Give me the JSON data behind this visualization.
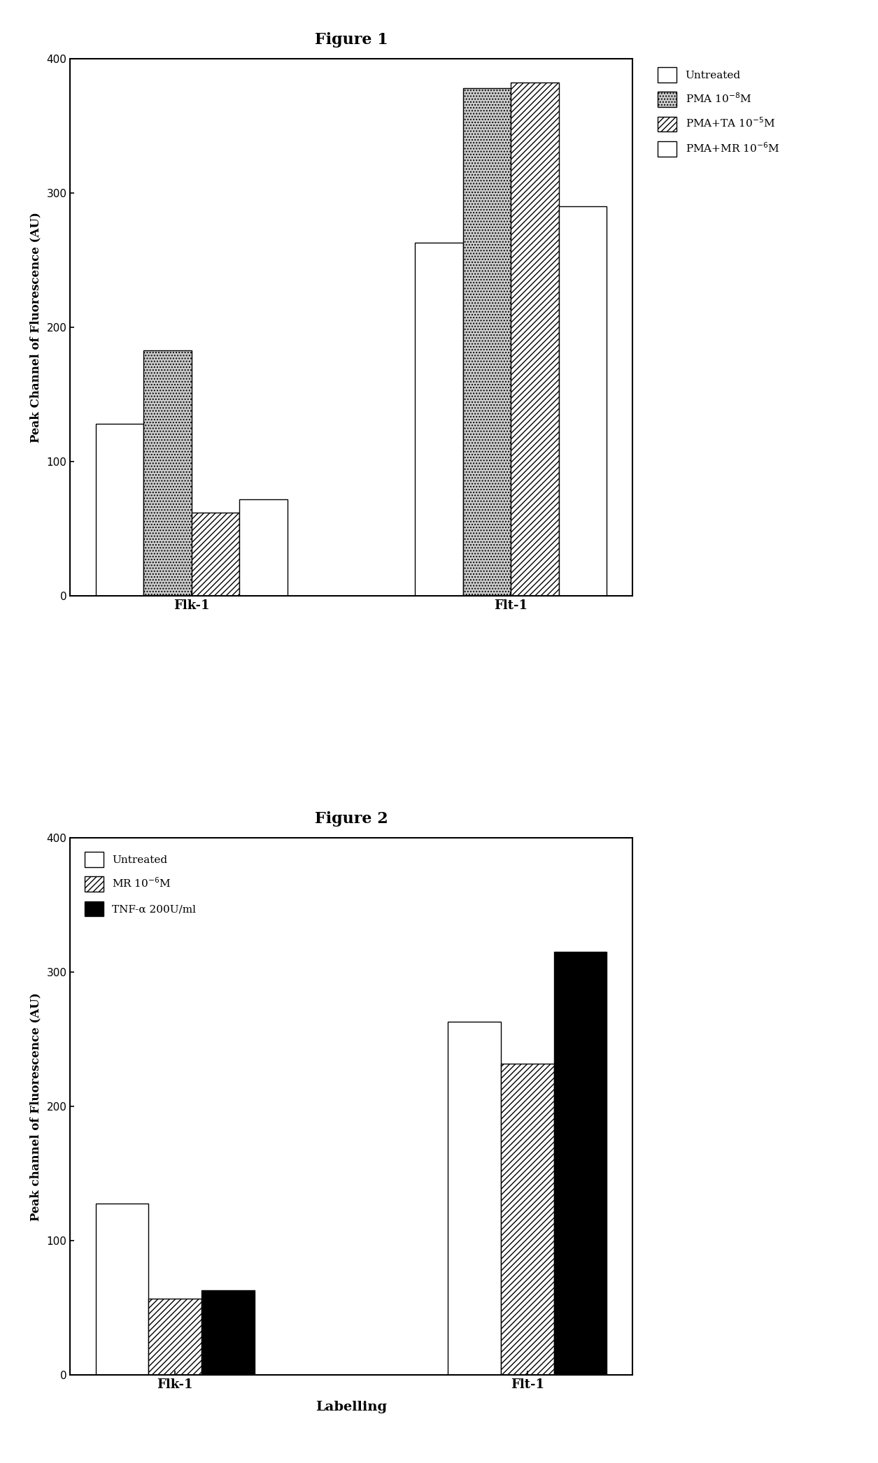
{
  "fig1": {
    "title": "Figure 1",
    "ylabel": "Peak Channel of Fluorescence (AU)",
    "ylim": [
      0,
      400
    ],
    "yticks": [
      0,
      100,
      200,
      300,
      400
    ],
    "groups": [
      "Flk-1",
      "Flt-1"
    ],
    "series": [
      {
        "label": "Untreated",
        "values": [
          128,
          263
        ],
        "hatch": "",
        "facecolor": "white",
        "edgecolor": "black"
      },
      {
        "label": "PMA 10$^{-8}$M",
        "values": [
          183,
          378
        ],
        "hatch": "....",
        "facecolor": "#cccccc",
        "edgecolor": "black"
      },
      {
        "label": "PMA+TA 10$^{-5}$M",
        "values": [
          62,
          382
        ],
        "hatch": "////",
        "facecolor": "white",
        "edgecolor": "black"
      },
      {
        "label": "PMA+MR 10$^{-6}$M",
        "values": [
          72,
          290
        ],
        "hatch": "",
        "facecolor": "white",
        "edgecolor": "black"
      }
    ],
    "legend_labels": [
      "Untreated",
      "PMA 10$^{-8}$M",
      "PMA+TA 10$^{-5}$M",
      "PMA+MR 10$^{-6}$M"
    ],
    "legend_hatches": [
      "",
      "....",
      "////",
      ""
    ],
    "legend_facecolors": [
      "white",
      "#cccccc",
      "white",
      "white"
    ],
    "legend_outside": true
  },
  "fig2": {
    "title": "Figure 2",
    "ylabel": "Peak channel of Fluorescence (AU)",
    "xlabel": "Labelling",
    "ylim": [
      0,
      400
    ],
    "yticks": [
      0,
      100,
      200,
      300,
      400
    ],
    "groups": [
      "Flk-1",
      "Flt-1"
    ],
    "series": [
      {
        "label": "Untreated",
        "values": [
          128,
          263
        ],
        "hatch": "",
        "facecolor": "white",
        "edgecolor": "black"
      },
      {
        "label": "MR 10$^{-6}$M",
        "values": [
          57,
          232
        ],
        "hatch": "////",
        "facecolor": "white",
        "edgecolor": "black"
      },
      {
        "label": "TNF-α 200U/ml",
        "values": [
          63,
          315
        ],
        "hatch": "",
        "facecolor": "black",
        "edgecolor": "black"
      }
    ],
    "legend_labels": [
      "Untreated",
      "MR 10$^{-6}$M",
      "TNF-α 200U/ml"
    ],
    "legend_hatches": [
      "",
      "////",
      ""
    ],
    "legend_facecolors": [
      "white",
      "white",
      "black"
    ],
    "legend_outside": false
  },
  "bar_width": 0.15,
  "figsize": [
    12.55,
    20.92
  ],
  "dpi": 100
}
